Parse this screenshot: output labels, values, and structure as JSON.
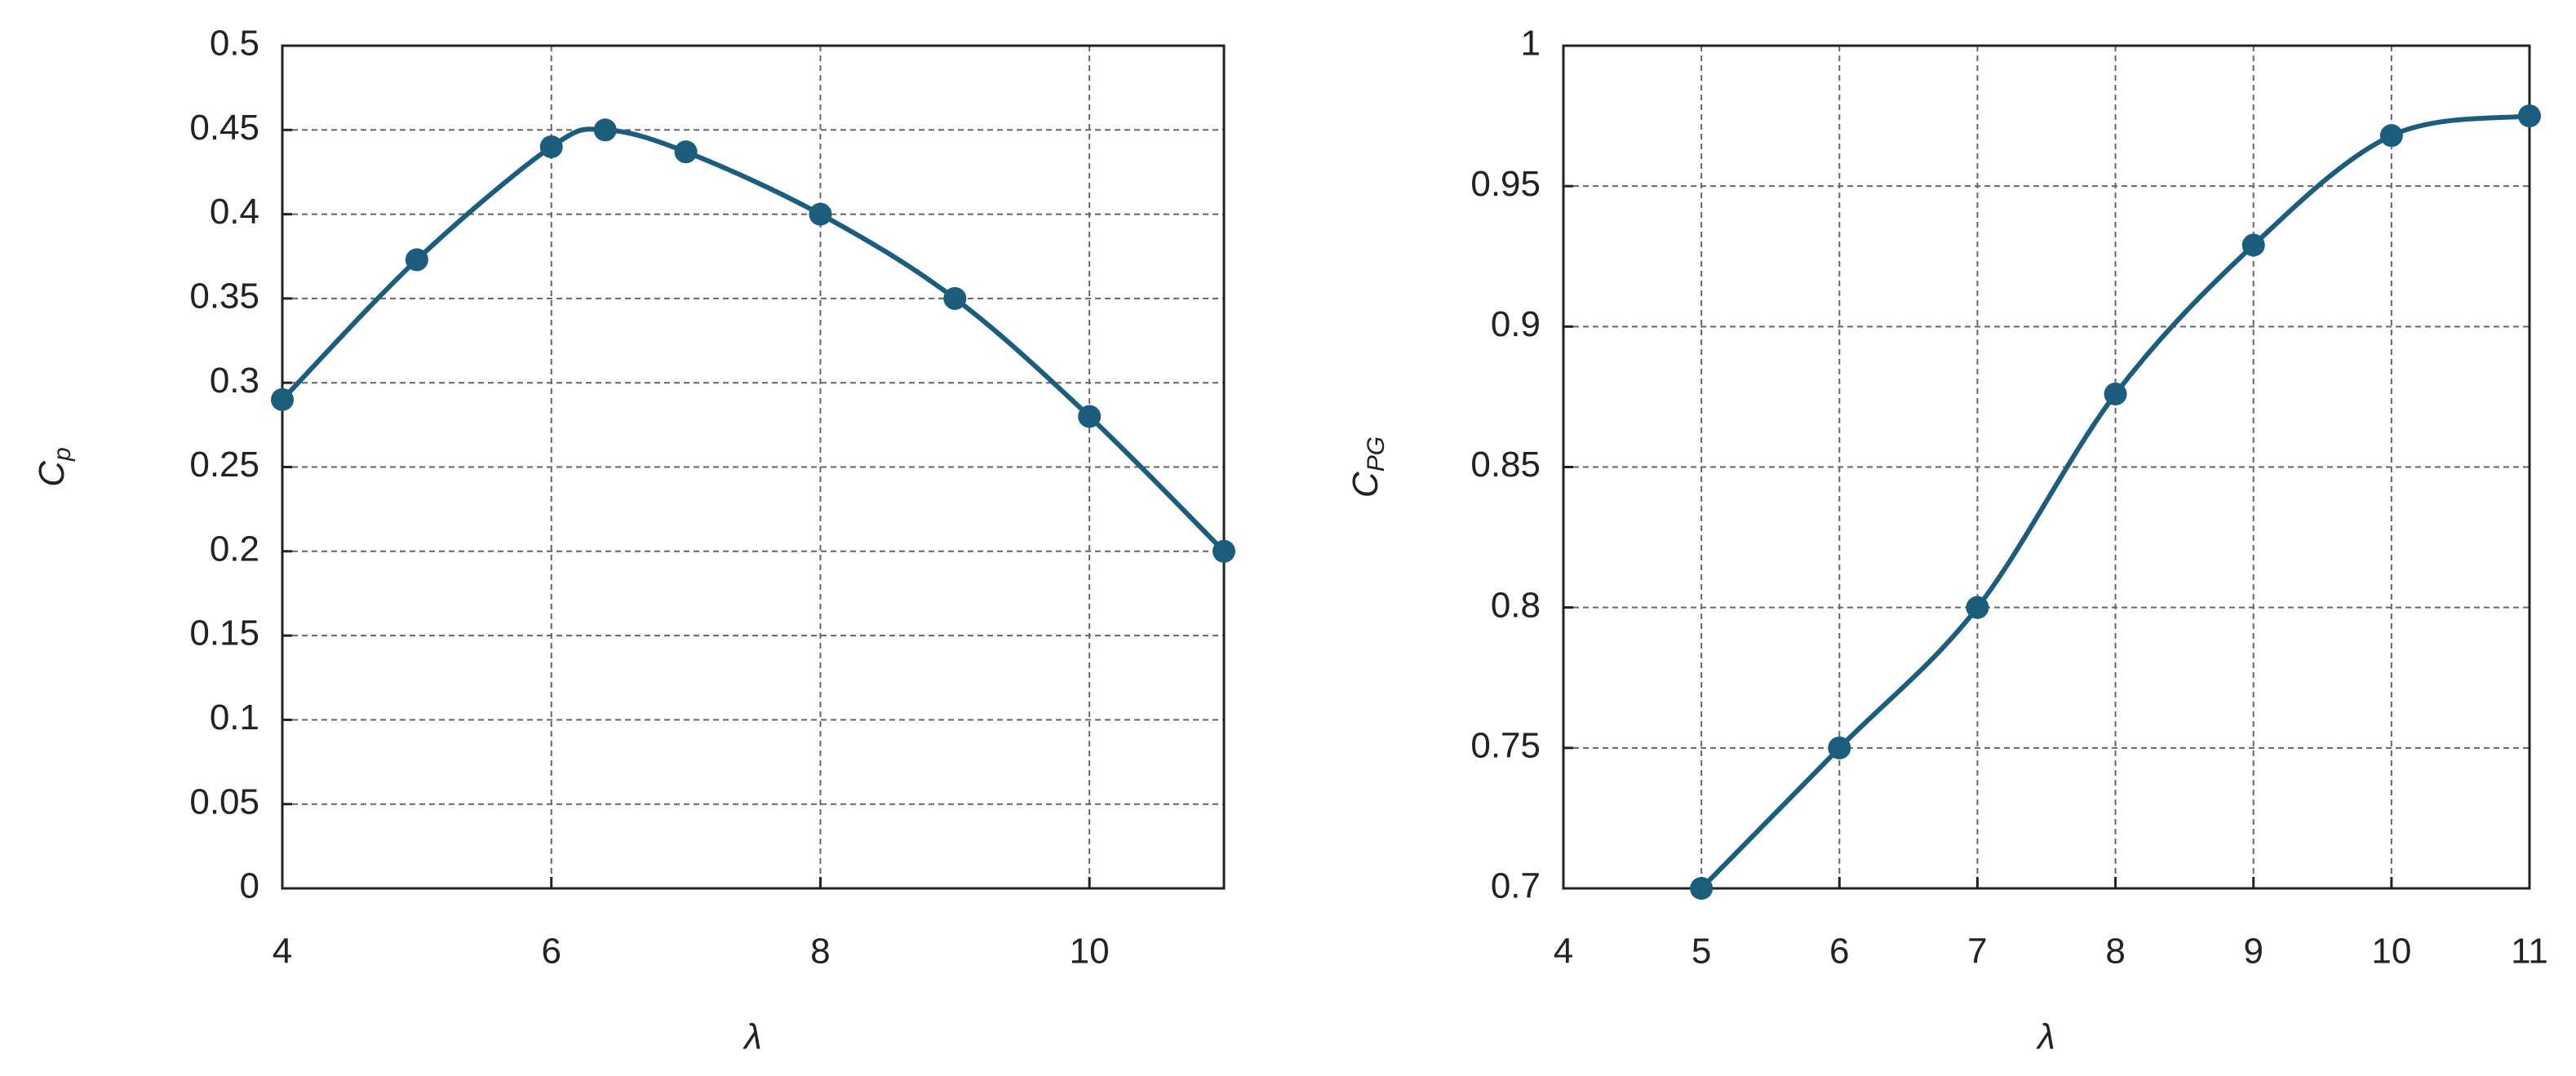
{
  "chart_data": [
    {
      "type": "line",
      "xlabel": "λ",
      "ylabel": {
        "text": "C",
        "subscript": "p"
      },
      "x": [
        4,
        5,
        6,
        6.4,
        7,
        8,
        9,
        10,
        11
      ],
      "series": [
        {
          "color": "#1c5c7c",
          "values": [
            0.29,
            0.373,
            0.44,
            0.45,
            0.437,
            0.4,
            0.35,
            0.28,
            0.2
          ]
        }
      ],
      "xlim": [
        4,
        11
      ],
      "xticks": [
        4,
        6,
        8,
        10
      ],
      "ylim": [
        0,
        0.5
      ],
      "yticks": [
        0,
        0.05,
        0.1,
        0.15,
        0.2,
        0.25,
        0.3,
        0.35,
        0.4,
        0.45,
        0.5
      ],
      "grid": true
    },
    {
      "type": "line",
      "xlabel": "λ",
      "ylabel": {
        "text": "C",
        "subscript": "PG"
      },
      "x": [
        5,
        6,
        7,
        8,
        9,
        10,
        11
      ],
      "series": [
        {
          "color": "#1c5c7c",
          "values": [
            0.7,
            0.75,
            0.8,
            0.876,
            0.929,
            0.968,
            0.975
          ]
        }
      ],
      "xlim": [
        4,
        11
      ],
      "xticks": [
        4,
        5,
        6,
        7,
        8,
        9,
        10,
        11
      ],
      "ylim": [
        0.7,
        1
      ],
      "yticks": [
        0.7,
        0.75,
        0.8,
        0.85,
        0.9,
        0.95,
        1
      ],
      "grid": true
    }
  ]
}
